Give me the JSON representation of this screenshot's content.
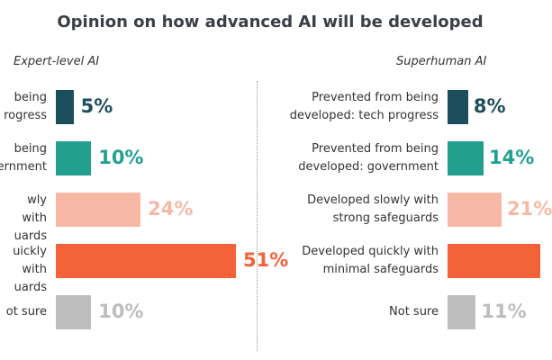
{
  "chart_data": [
    {
      "type": "bar",
      "orientation": "horizontal",
      "title": "Opinion on how advanced AI will be developed",
      "panel": "Expert-level AI",
      "categories_visible": [
        "being\nrogress",
        "being\novernment",
        "wly with\nuards",
        "uickly with\nuards",
        "ot sure"
      ],
      "values": [
        5,
        10,
        24,
        51,
        10
      ],
      "value_labels": [
        "5%",
        "10%",
        "24%",
        "51%",
        "10%"
      ],
      "colors": [
        "#1d4e5c",
        "#22a08f",
        "#f7b9a6",
        "#f4623a",
        "#bdbdbd"
      ],
      "label_colors": [
        "#1d4e5c",
        "#22a08f",
        "#f7b9a6",
        "#f4623a",
        "#bdbdbd"
      ]
    },
    {
      "type": "bar",
      "orientation": "horizontal",
      "panel": "Superhuman AI",
      "categories": [
        "Prevented from being\ndeveloped: tech progress",
        "Prevented from being\ndeveloped: government",
        "Developed slowly with\nstrong safeguards",
        "Developed quickly with\nminimal safeguards",
        "Not sure"
      ],
      "values": [
        8,
        14,
        21,
        null,
        11
      ],
      "value_labels": [
        "8%",
        "14%",
        "21%",
        "",
        "11%"
      ],
      "colors": [
        "#1d4e5c",
        "#22a08f",
        "#f7b9a6",
        "#f4623a",
        "#bdbdbd"
      ],
      "label_colors": [
        "#1d4e5c",
        "#22a08f",
        "#f7b9a6",
        "#f4623a",
        "#bdbdbd"
      ]
    }
  ]
}
